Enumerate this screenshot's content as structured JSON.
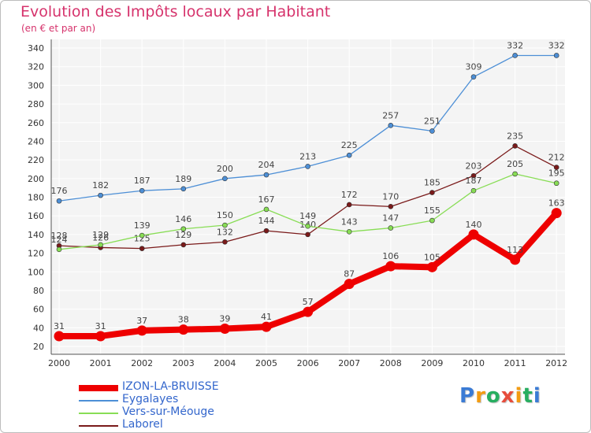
{
  "title": "Evolution des Impôts locaux par Habitant",
  "subtitle": "(en € et par an)",
  "logo": {
    "text": "Proxiti"
  },
  "chart_data": {
    "type": "line",
    "x": [
      "2000",
      "2001",
      "2002",
      "2003",
      "2004",
      "2005",
      "2006",
      "2007",
      "2008",
      "2009",
      "2010",
      "2011",
      "2012"
    ],
    "ylim": [
      20,
      340
    ],
    "yticks": [
      20,
      40,
      60,
      80,
      100,
      120,
      140,
      160,
      180,
      200,
      220,
      240,
      260,
      280,
      300,
      320,
      340
    ],
    "grid": true,
    "legend_position": "bottom-left",
    "series": [
      {
        "name": "IZON-LA-BRUISSE",
        "color": "#ee0000",
        "values": [
          31,
          31,
          37,
          38,
          39,
          41,
          57,
          87,
          106,
          105,
          140,
          113,
          163
        ]
      },
      {
        "name": "Eygalayes",
        "color": "#4d8fd6",
        "values": [
          176,
          182,
          187,
          189,
          200,
          204,
          213,
          225,
          257,
          251,
          309,
          332,
          332
        ]
      },
      {
        "name": "Vers-sur-Méouge",
        "color": "#88dd55",
        "values": [
          124,
          129,
          139,
          146,
          150,
          167,
          149,
          143,
          147,
          155,
          187,
          205,
          195
        ]
      },
      {
        "name": "Laborel",
        "color": "#7a1a1a",
        "values": [
          128,
          126,
          125,
          129,
          132,
          144,
          140,
          172,
          170,
          185,
          203,
          235,
          212
        ]
      }
    ]
  }
}
